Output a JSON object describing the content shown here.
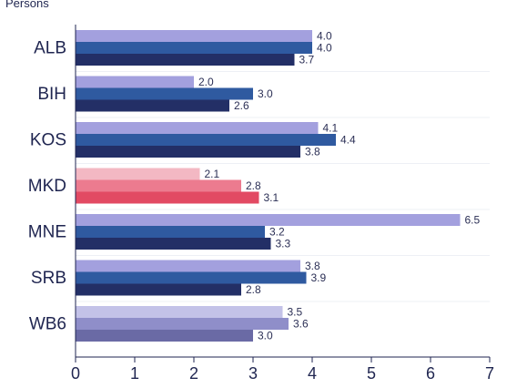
{
  "chart_data": {
    "type": "bar",
    "orientation": "horizontal",
    "unit_label": "Persons",
    "categories": [
      "ALB",
      "BIH",
      "KOS",
      "MKD",
      "MNE",
      "SRB",
      "WB6"
    ],
    "xlim": [
      0,
      7
    ],
    "xticks": [
      0,
      1,
      2,
      3,
      4,
      5,
      6,
      7
    ],
    "grid": false,
    "bar_groups": [
      {
        "category": "ALB",
        "values": [
          4.0,
          4.0,
          3.7
        ],
        "labels": [
          "4.0",
          "4.0",
          "3.7"
        ],
        "colors": [
          "#a3a0de",
          "#2f5aa0",
          "#232f66"
        ]
      },
      {
        "category": "BIH",
        "values": [
          2.0,
          3.0,
          2.6
        ],
        "labels": [
          "2.0",
          "3.0",
          "2.6"
        ],
        "colors": [
          "#a3a0de",
          "#2f5aa0",
          "#232f66"
        ]
      },
      {
        "category": "KOS",
        "values": [
          4.1,
          4.4,
          3.8
        ],
        "labels": [
          "4.1",
          "4.4",
          "3.8"
        ],
        "colors": [
          "#a3a0de",
          "#2f5aa0",
          "#232f66"
        ]
      },
      {
        "category": "MKD",
        "values": [
          2.1,
          2.8,
          3.1
        ],
        "labels": [
          "2.1",
          "2.8",
          "3.1"
        ],
        "colors": [
          "#f3b8c3",
          "#ec7b8f",
          "#e24a63"
        ]
      },
      {
        "category": "MNE",
        "values": [
          6.5,
          3.2,
          3.3
        ],
        "labels": [
          "6.5",
          "3.2",
          "3.3"
        ],
        "colors": [
          "#a3a0de",
          "#2f5aa0",
          "#232f66"
        ]
      },
      {
        "category": "SRB",
        "values": [
          3.8,
          3.9,
          2.8
        ],
        "labels": [
          "3.8",
          "3.9",
          "2.8"
        ],
        "colors": [
          "#a3a0de",
          "#2f5aa0",
          "#232f66"
        ]
      },
      {
        "category": "WB6",
        "values": [
          3.5,
          3.6,
          3.0
        ],
        "labels": [
          "3.5",
          "3.6",
          "3.0"
        ],
        "colors": [
          "#c3c2e8",
          "#8f8ec9",
          "#6a6aa5"
        ]
      }
    ]
  }
}
